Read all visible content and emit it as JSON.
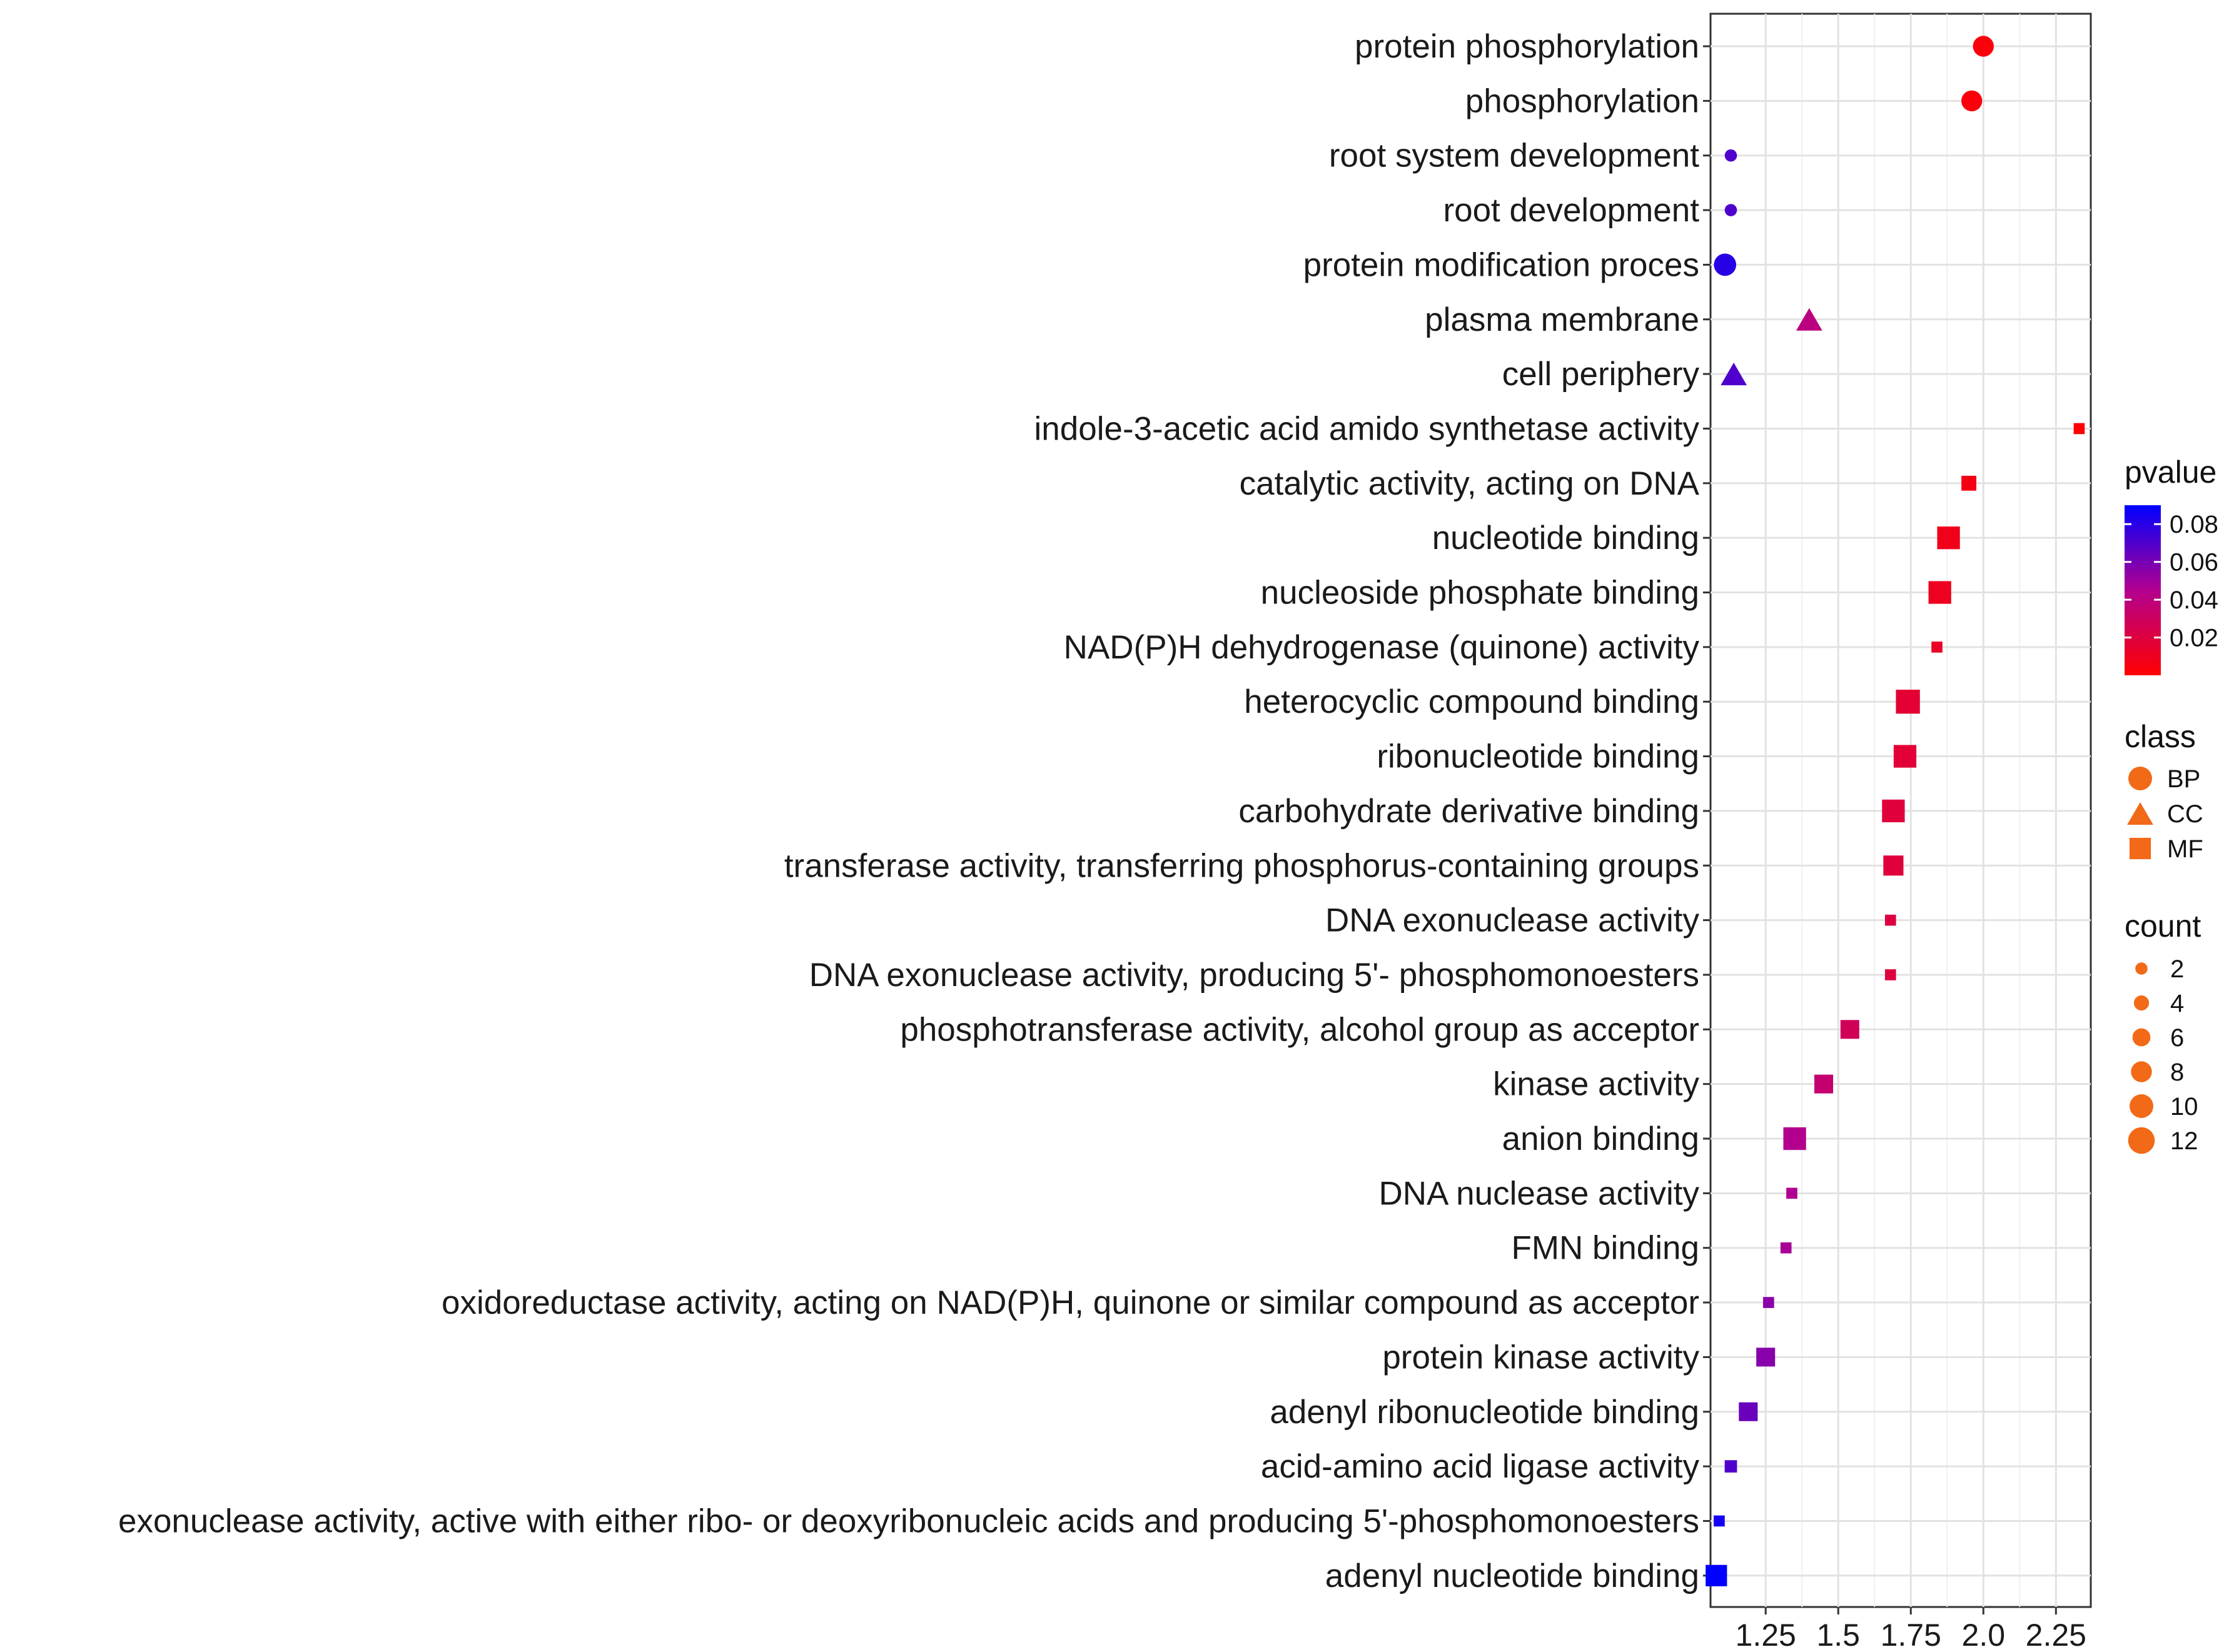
{
  "chart_data": {
    "type": "scatter",
    "title": "",
    "xlabel": "",
    "ylabel": "",
    "xlim": [
      1.06,
      2.37
    ],
    "x_ticks": [
      1.25,
      1.5,
      1.75,
      2.0,
      2.25
    ],
    "x_tick_labels": [
      "1.25",
      "1.5",
      "1.75",
      "2.0",
      "2.25"
    ],
    "grid": true,
    "points": [
      {
        "term": "protein phosphorylation",
        "x": 2.0,
        "class": "BP",
        "count": 8,
        "pvalue": 0.003
      },
      {
        "term": "phosphorylation",
        "x": 1.96,
        "class": "BP",
        "count": 8,
        "pvalue": 0.003
      },
      {
        "term": "root system development",
        "x": 1.13,
        "class": "BP",
        "count": 2,
        "pvalue": 0.07
      },
      {
        "term": "root development",
        "x": 1.13,
        "class": "BP",
        "count": 2,
        "pvalue": 0.07
      },
      {
        "term": "protein modification proces",
        "x": 1.11,
        "class": "BP",
        "count": 9,
        "pvalue": 0.08
      },
      {
        "term": "plasma membrane",
        "x": 1.4,
        "class": "CC",
        "count": 10,
        "pvalue": 0.04
      },
      {
        "term": "cell periphery",
        "x": 1.14,
        "class": "CC",
        "count": 10,
        "pvalue": 0.07
      },
      {
        "term": "indole-3-acetic acid amido synthetase activity",
        "x": 2.33,
        "class": "MF",
        "count": 2,
        "pvalue": 0.001
      },
      {
        "term": "catalytic activity, acting on DNA",
        "x": 1.95,
        "class": "MF",
        "count": 5,
        "pvalue": 0.006
      },
      {
        "term": "nucleotide binding",
        "x": 1.88,
        "class": "MF",
        "count": 11,
        "pvalue": 0.008
      },
      {
        "term": "nucleoside phosphate binding",
        "x": 1.85,
        "class": "MF",
        "count": 11,
        "pvalue": 0.01
      },
      {
        "term": "NAD(P)H dehydrogenase (quinone) activity",
        "x": 1.84,
        "class": "MF",
        "count": 2,
        "pvalue": 0.012
      },
      {
        "term": "heterocyclic compound binding",
        "x": 1.74,
        "class": "MF",
        "count": 12,
        "pvalue": 0.016
      },
      {
        "term": "ribonucleotide binding",
        "x": 1.73,
        "class": "MF",
        "count": 11,
        "pvalue": 0.017
      },
      {
        "term": "carbohydrate derivative binding",
        "x": 1.69,
        "class": "MF",
        "count": 11,
        "pvalue": 0.019
      },
      {
        "term": "transferase activity, transferring phosphorus-containing groups",
        "x": 1.69,
        "class": "MF",
        "count": 9,
        "pvalue": 0.019
      },
      {
        "term": "DNA exonuclease activity",
        "x": 1.68,
        "class": "MF",
        "count": 2,
        "pvalue": 0.02
      },
      {
        "term": "DNA exonuclease activity, producing 5'- phosphomonoesters",
        "x": 1.68,
        "class": "MF",
        "count": 2,
        "pvalue": 0.02
      },
      {
        "term": "phosphotransferase activity, alcohol group as acceptor",
        "x": 1.54,
        "class": "MF",
        "count": 8,
        "pvalue": 0.028
      },
      {
        "term": "kinase activity",
        "x": 1.45,
        "class": "MF",
        "count": 8,
        "pvalue": 0.035
      },
      {
        "term": "anion binding",
        "x": 1.35,
        "class": "MF",
        "count": 11,
        "pvalue": 0.045
      },
      {
        "term": "DNA nuclease activity",
        "x": 1.34,
        "class": "MF",
        "count": 2,
        "pvalue": 0.046
      },
      {
        "term": "FMN binding",
        "x": 1.32,
        "class": "MF",
        "count": 2,
        "pvalue": 0.048
      },
      {
        "term": "oxidoreductase activity, acting on NAD(P)H, quinone or similar compound as acceptor",
        "x": 1.26,
        "class": "MF",
        "count": 2,
        "pvalue": 0.055
      },
      {
        "term": "protein kinase activity",
        "x": 1.25,
        "class": "MF",
        "count": 8,
        "pvalue": 0.056
      },
      {
        "term": "adenyl ribonucleotide binding",
        "x": 1.19,
        "class": "MF",
        "count": 8,
        "pvalue": 0.063
      },
      {
        "term": "acid-amino acid ligase activity",
        "x": 1.13,
        "class": "MF",
        "count": 3,
        "pvalue": 0.07
      },
      {
        "term": "exonuclease activity, active with either ribo- or deoxyribonucleic acids and producing 5'-phosphomonoesters",
        "x": 1.09,
        "class": "MF",
        "count": 2,
        "pvalue": 0.085
      },
      {
        "term": "adenyl nucleotide binding",
        "x": 1.08,
        "class": "MF",
        "count": 10,
        "pvalue": 0.09
      }
    ],
    "legend": {
      "pvalue": {
        "title": "pvalue",
        "ticks": [
          "0.08",
          "0.06",
          "0.04",
          "0.02"
        ],
        "tick_values": [
          0.08,
          0.06,
          0.04,
          0.02
        ],
        "range": [
          0.0,
          0.09
        ],
        "low_color": "#ff0000",
        "high_color": "#0000ff"
      },
      "class": {
        "title": "class",
        "items": [
          {
            "label": "BP",
            "shape": "circle"
          },
          {
            "label": "CC",
            "shape": "triangle"
          },
          {
            "label": "MF",
            "shape": "square"
          }
        ],
        "color": "#f26a17"
      },
      "count": {
        "title": "count",
        "items": [
          {
            "label": "2",
            "value": 2
          },
          {
            "label": "4",
            "value": 4
          },
          {
            "label": "6",
            "value": 6
          },
          {
            "label": "8",
            "value": 8
          },
          {
            "label": "10",
            "value": 10
          },
          {
            "label": "12",
            "value": 12
          }
        ],
        "color": "#f26a17"
      }
    }
  }
}
